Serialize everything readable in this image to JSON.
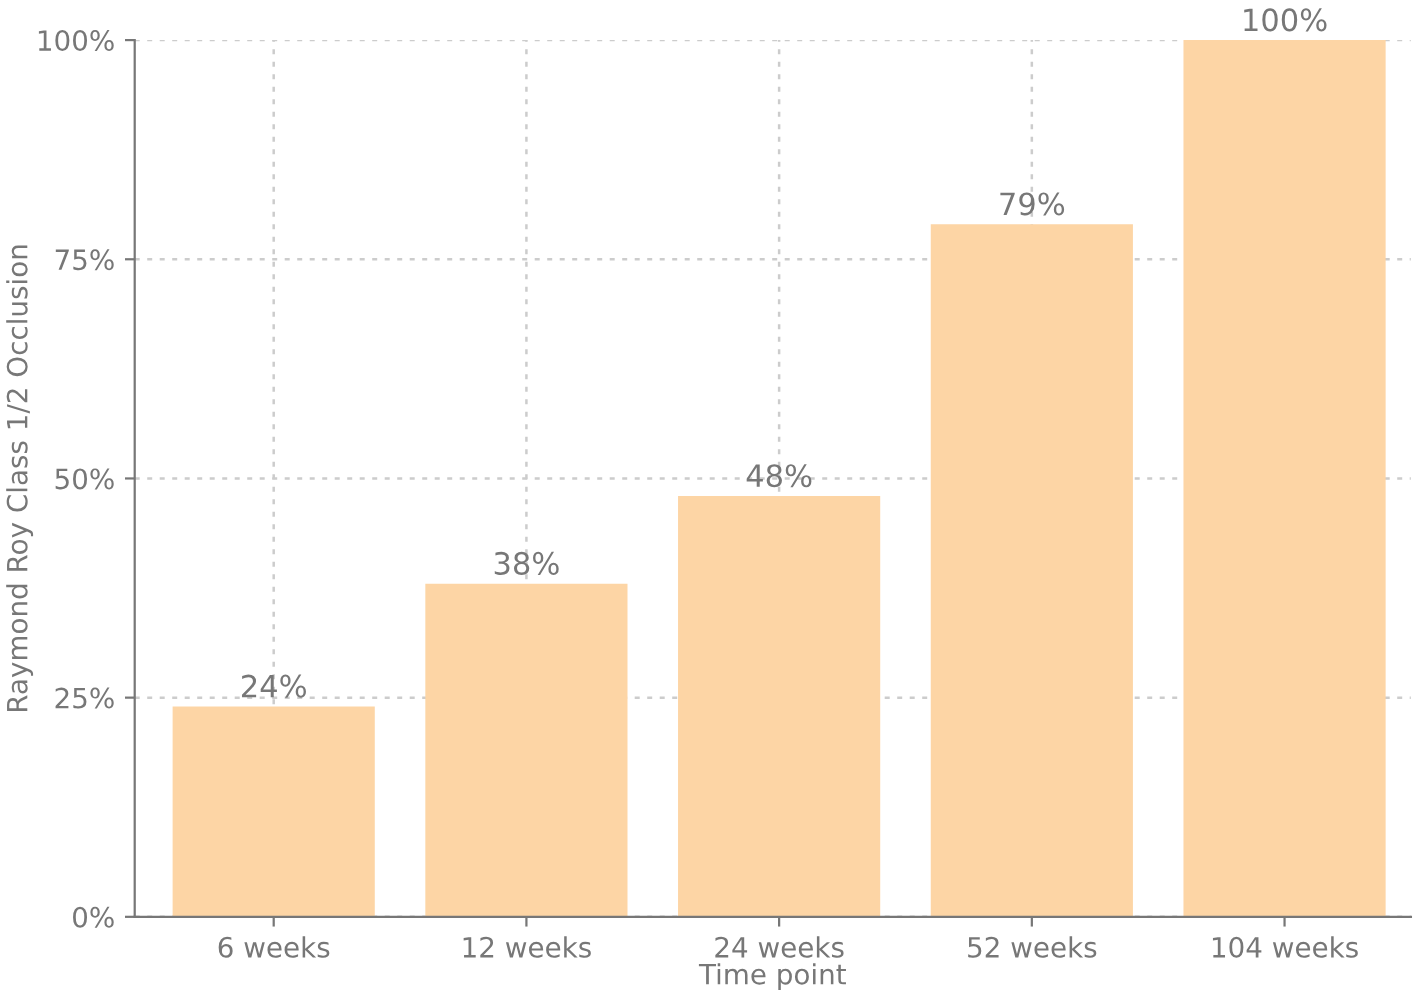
{
  "chart_data": {
    "type": "bar",
    "xlabel": "Time point",
    "ylabel": "Raymond Roy Class 1/2 Occlusion",
    "categories": [
      "6 weeks",
      "12 weeks",
      "24 weeks",
      "52 weeks",
      "104 weeks"
    ],
    "values": [
      24,
      38,
      48,
      79,
      100
    ],
    "value_labels": [
      "24%",
      "38%",
      "48%",
      "79%",
      "100%"
    ],
    "color": "#fdd5a5",
    "ylim": [
      0,
      100
    ],
    "yticks": [
      {
        "value": 0,
        "label": "0%"
      },
      {
        "value": 25,
        "label": "25%"
      },
      {
        "value": 50,
        "label": "50%"
      },
      {
        "value": 75,
        "label": "75%"
      },
      {
        "value": 100,
        "label": "100%"
      }
    ],
    "grid": true
  }
}
